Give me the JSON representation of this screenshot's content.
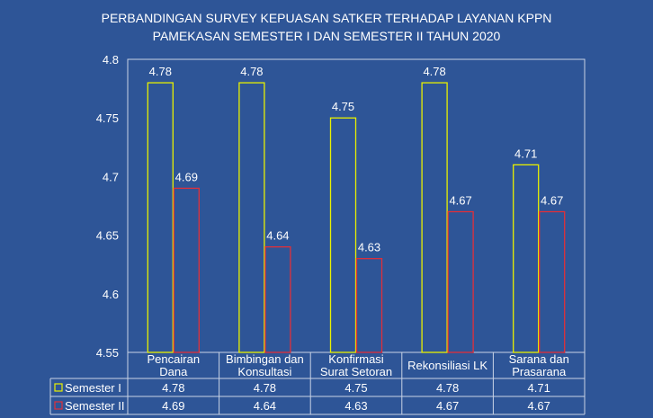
{
  "chart_data": {
    "type": "bar",
    "title_lines": [
      "PERBANDINGAN SURVEY KEPUASAN SATKER TERHADAP LAYANAN  KPPN",
      "PAMEKASAN SEMESTER I DAN SEMESTER II TAHUN 2020"
    ],
    "categories": [
      [
        "Pencairan",
        "Dana"
      ],
      [
        "Bimbingan dan",
        "Konsultasi"
      ],
      [
        "Konfirmasi",
        "Surat Setoran"
      ],
      [
        "Rekonsiliasi LK"
      ],
      [
        "Sarana dan",
        "Prasarana"
      ]
    ],
    "series": [
      {
        "name": "Semester I",
        "color": "#e8f000",
        "values": [
          4.78,
          4.78,
          4.75,
          4.78,
          4.71
        ]
      },
      {
        "name": "Semester II",
        "color": "#e0303a",
        "values": [
          4.69,
          4.64,
          4.63,
          4.67,
          4.67
        ]
      }
    ],
    "ylim": [
      4.55,
      4.8
    ],
    "yticks": [
      "4.8",
      "4.75",
      "4.7",
      "4.65",
      "4.6",
      "4.55"
    ],
    "grid": false,
    "legend": "data-table",
    "data_table": true
  }
}
